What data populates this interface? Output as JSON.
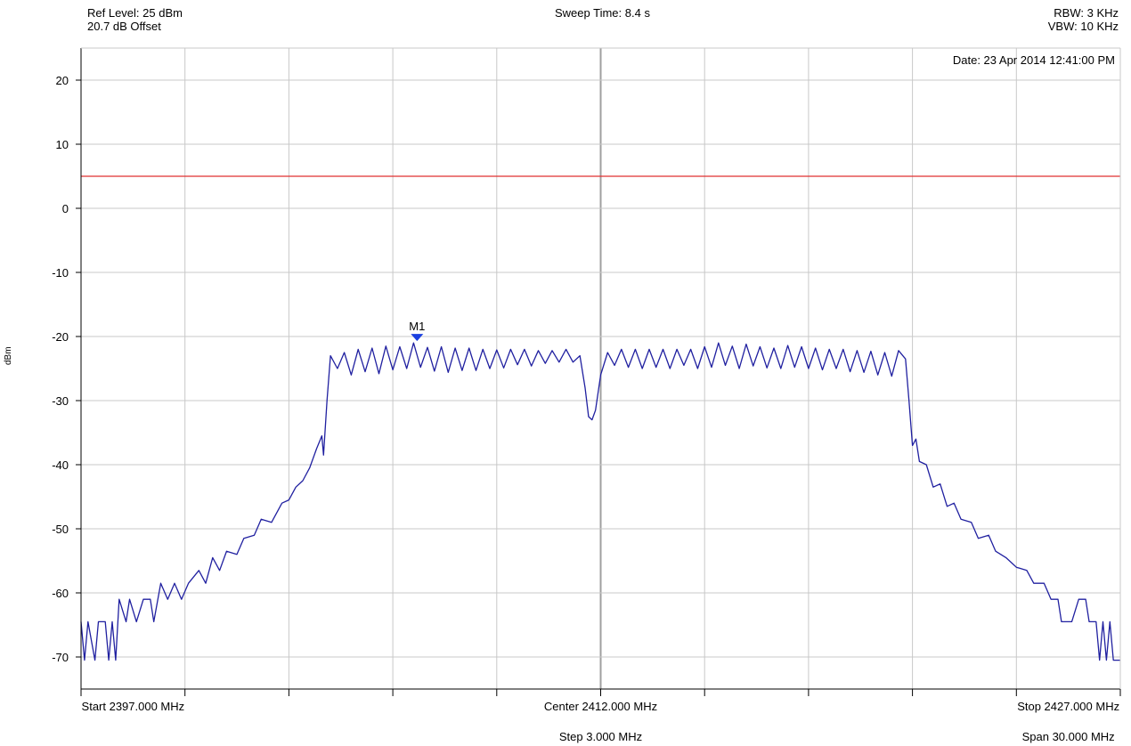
{
  "header": {
    "ref_level": "Ref Level: 25 dBm",
    "offset": "20.7 dB Offset",
    "sweep_time": "Sweep Time: 8.4 s",
    "rbw": "RBW: 3 KHz",
    "vbw": "VBW: 10 KHz",
    "date": "Date: 23 Apr 2014 12:41:00 PM"
  },
  "footer": {
    "start": "Start 2397.000 MHz",
    "center": "Center 2412.000 MHz",
    "stop": "Stop 2427.000 MHz",
    "step": "Step 3.000 MHz",
    "span": "Span 30.000 MHz"
  },
  "chart_data": {
    "type": "line",
    "title": "",
    "xlabel": "",
    "ylabel": "dBm",
    "xlim": [
      2397,
      2427
    ],
    "ylim": [
      -75,
      25
    ],
    "yticks": [
      20,
      10,
      0,
      -10,
      -20,
      -30,
      -40,
      -50,
      -60,
      -70
    ],
    "ytick_labels": [
      "20",
      "10",
      "0",
      "-10",
      "-20",
      "-30",
      "-40",
      "-50",
      "-60",
      "-70"
    ],
    "xgrid": [
      2400,
      2403,
      2406,
      2409,
      2412,
      2415,
      2418,
      2421,
      2424,
      2427
    ],
    "grid": true,
    "colors": {
      "trace": "#2020a0",
      "limit_line": "#e03030",
      "marker": "#1a3fe0",
      "grid": "#c8c8c8",
      "center_line": "#a0a0a0"
    },
    "limit_line": {
      "y": 5
    },
    "marker": {
      "name": "M1",
      "x": 2406.7,
      "y": -20.3
    },
    "series": [
      {
        "values": [
          [
            2397.0,
            -64.5
          ],
          [
            2397.1,
            -70.5
          ],
          [
            2397.2,
            -64.5
          ],
          [
            2397.4,
            -70.5
          ],
          [
            2397.5,
            -64.5
          ],
          [
            2397.7,
            -64.5
          ],
          [
            2397.8,
            -70.5
          ],
          [
            2397.9,
            -64.5
          ],
          [
            2398.0,
            -70.5
          ],
          [
            2398.1,
            -61.0
          ],
          [
            2398.3,
            -64.5
          ],
          [
            2398.4,
            -61.0
          ],
          [
            2398.6,
            -64.5
          ],
          [
            2398.8,
            -61.0
          ],
          [
            2399.0,
            -61.0
          ],
          [
            2399.1,
            -64.5
          ],
          [
            2399.3,
            -58.5
          ],
          [
            2399.5,
            -61.0
          ],
          [
            2399.7,
            -58.5
          ],
          [
            2399.9,
            -61.0
          ],
          [
            2400.1,
            -58.5
          ],
          [
            2400.4,
            -56.5
          ],
          [
            2400.6,
            -58.5
          ],
          [
            2400.8,
            -54.5
          ],
          [
            2401.0,
            -56.5
          ],
          [
            2401.2,
            -53.5
          ],
          [
            2401.5,
            -54.0
          ],
          [
            2401.7,
            -51.5
          ],
          [
            2402.0,
            -51.0
          ],
          [
            2402.2,
            -48.5
          ],
          [
            2402.5,
            -49.0
          ],
          [
            2402.8,
            -46.0
          ],
          [
            2403.0,
            -45.5
          ],
          [
            2403.2,
            -43.5
          ],
          [
            2403.4,
            -42.5
          ],
          [
            2403.6,
            -40.5
          ],
          [
            2403.8,
            -37.5
          ],
          [
            2403.95,
            -35.5
          ],
          [
            2404.0,
            -38.5
          ],
          [
            2404.1,
            -30.0
          ],
          [
            2404.2,
            -23.0
          ],
          [
            2404.4,
            -25.0
          ],
          [
            2404.6,
            -22.5
          ],
          [
            2404.8,
            -26.0
          ],
          [
            2405.0,
            -22.0
          ],
          [
            2405.2,
            -25.5
          ],
          [
            2405.4,
            -21.8
          ],
          [
            2405.6,
            -25.8
          ],
          [
            2405.8,
            -21.5
          ],
          [
            2406.0,
            -25.2
          ],
          [
            2406.2,
            -21.6
          ],
          [
            2406.4,
            -25.0
          ],
          [
            2406.6,
            -21.0
          ],
          [
            2406.8,
            -24.8
          ],
          [
            2407.0,
            -21.7
          ],
          [
            2407.2,
            -25.4
          ],
          [
            2407.4,
            -21.6
          ],
          [
            2407.6,
            -25.6
          ],
          [
            2407.8,
            -21.8
          ],
          [
            2408.0,
            -25.3
          ],
          [
            2408.2,
            -21.8
          ],
          [
            2408.4,
            -25.3
          ],
          [
            2408.6,
            -22.0
          ],
          [
            2408.8,
            -25.0
          ],
          [
            2409.0,
            -22.1
          ],
          [
            2409.2,
            -24.9
          ],
          [
            2409.4,
            -22.0
          ],
          [
            2409.6,
            -24.4
          ],
          [
            2409.8,
            -22.0
          ],
          [
            2410.0,
            -24.6
          ],
          [
            2410.2,
            -22.2
          ],
          [
            2410.4,
            -24.2
          ],
          [
            2410.6,
            -22.2
          ],
          [
            2410.8,
            -24.0
          ],
          [
            2411.0,
            -22.0
          ],
          [
            2411.2,
            -24.0
          ],
          [
            2411.4,
            -23.0
          ],
          [
            2411.55,
            -28.0
          ],
          [
            2411.65,
            -32.5
          ],
          [
            2411.75,
            -33.0
          ],
          [
            2411.85,
            -31.5
          ],
          [
            2412.0,
            -26.0
          ],
          [
            2412.2,
            -22.5
          ],
          [
            2412.4,
            -24.5
          ],
          [
            2412.6,
            -22.0
          ],
          [
            2412.8,
            -24.8
          ],
          [
            2413.0,
            -22.0
          ],
          [
            2413.2,
            -25.0
          ],
          [
            2413.4,
            -22.0
          ],
          [
            2413.6,
            -24.8
          ],
          [
            2413.8,
            -22.0
          ],
          [
            2414.0,
            -25.0
          ],
          [
            2414.2,
            -22.0
          ],
          [
            2414.4,
            -24.5
          ],
          [
            2414.6,
            -22.0
          ],
          [
            2414.8,
            -25.0
          ],
          [
            2415.0,
            -21.6
          ],
          [
            2415.2,
            -24.8
          ],
          [
            2415.4,
            -21.0
          ],
          [
            2415.6,
            -24.5
          ],
          [
            2415.8,
            -21.5
          ],
          [
            2416.0,
            -25.0
          ],
          [
            2416.2,
            -21.2
          ],
          [
            2416.4,
            -24.6
          ],
          [
            2416.6,
            -21.6
          ],
          [
            2416.8,
            -24.9
          ],
          [
            2417.0,
            -21.8
          ],
          [
            2417.2,
            -25.0
          ],
          [
            2417.4,
            -21.4
          ],
          [
            2417.6,
            -24.8
          ],
          [
            2417.8,
            -21.6
          ],
          [
            2418.0,
            -25.0
          ],
          [
            2418.2,
            -21.8
          ],
          [
            2418.4,
            -25.2
          ],
          [
            2418.6,
            -22.0
          ],
          [
            2418.8,
            -25.0
          ],
          [
            2419.0,
            -22.0
          ],
          [
            2419.2,
            -25.5
          ],
          [
            2419.4,
            -22.2
          ],
          [
            2419.6,
            -25.6
          ],
          [
            2419.8,
            -22.3
          ],
          [
            2420.0,
            -26.0
          ],
          [
            2420.2,
            -22.5
          ],
          [
            2420.4,
            -26.2
          ],
          [
            2420.6,
            -22.2
          ],
          [
            2420.8,
            -23.5
          ],
          [
            2420.9,
            -30.0
          ],
          [
            2421.0,
            -37.0
          ],
          [
            2421.1,
            -36.0
          ],
          [
            2421.2,
            -39.5
          ],
          [
            2421.4,
            -40.0
          ],
          [
            2421.6,
            -43.5
          ],
          [
            2421.8,
            -43.0
          ],
          [
            2422.0,
            -46.5
          ],
          [
            2422.2,
            -46.0
          ],
          [
            2422.4,
            -48.5
          ],
          [
            2422.7,
            -49.0
          ],
          [
            2422.9,
            -51.5
          ],
          [
            2423.2,
            -51.0
          ],
          [
            2423.4,
            -53.5
          ],
          [
            2423.7,
            -54.5
          ],
          [
            2424.0,
            -56.0
          ],
          [
            2424.3,
            -56.5
          ],
          [
            2424.5,
            -58.5
          ],
          [
            2424.8,
            -58.5
          ],
          [
            2425.0,
            -61.0
          ],
          [
            2425.2,
            -61.0
          ],
          [
            2425.3,
            -64.5
          ],
          [
            2425.6,
            -64.5
          ],
          [
            2425.8,
            -61.0
          ],
          [
            2426.0,
            -61.0
          ],
          [
            2426.1,
            -64.5
          ],
          [
            2426.3,
            -64.5
          ],
          [
            2426.4,
            -70.5
          ],
          [
            2426.5,
            -64.5
          ],
          [
            2426.6,
            -70.5
          ],
          [
            2426.7,
            -64.5
          ],
          [
            2426.8,
            -70.5
          ],
          [
            2427.0,
            -70.5
          ]
        ]
      }
    ]
  }
}
